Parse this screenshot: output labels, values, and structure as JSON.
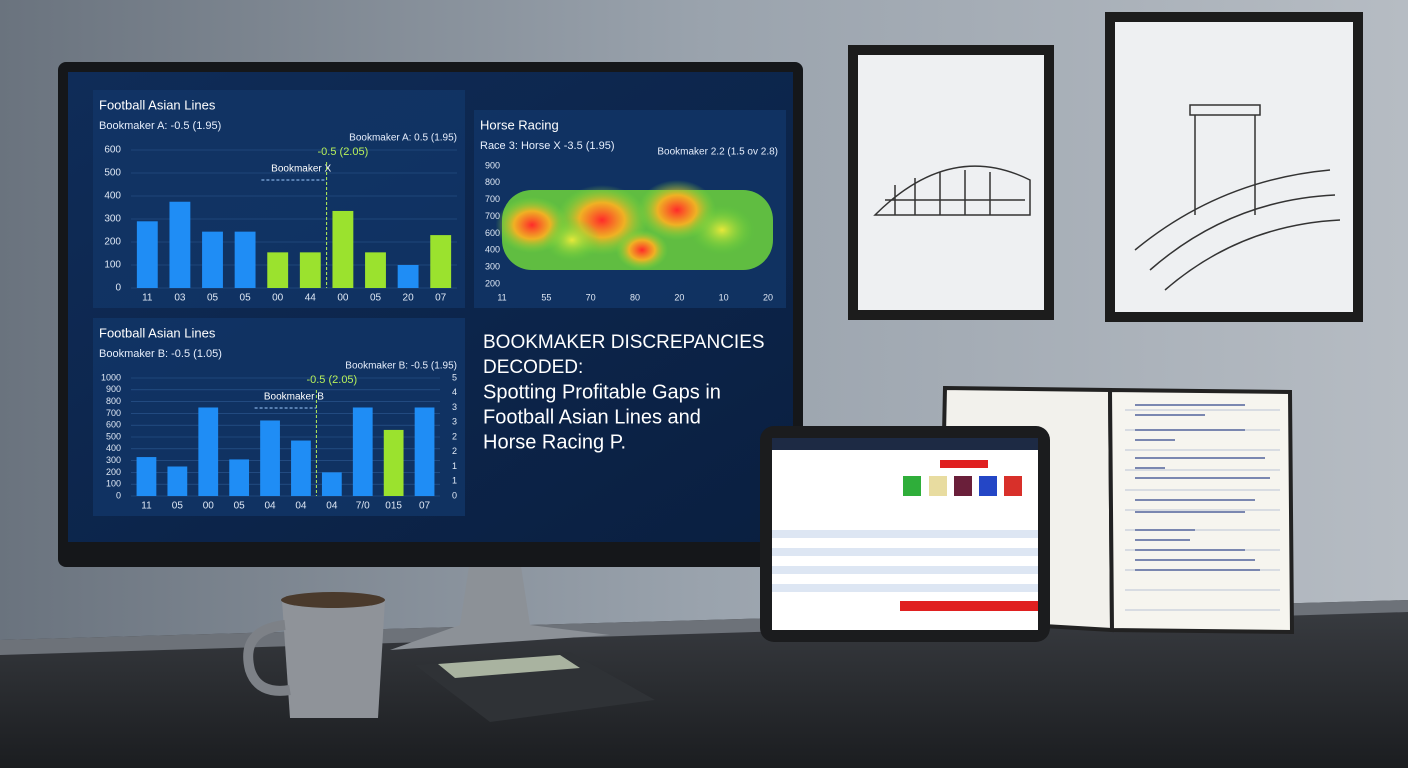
{
  "monitor": {
    "panels": [
      {
        "type": "bar",
        "title": "Football Asian Lines",
        "left_label": "Bookmaker A: -0.5 (1.95)",
        "right_label": "Bookmaker A: 0.5 (1.95)",
        "annotations": [
          "Bookmaker X",
          "-0.5 (2.05)"
        ],
        "categories": [
          "11",
          "03",
          "05",
          "05",
          "00",
          "44",
          "00",
          "05",
          "20",
          "07"
        ],
        "values": [
          290,
          375,
          245,
          245,
          155,
          155,
          335,
          155,
          100,
          230
        ],
        "colors": [
          "#1f8df5",
          "#1f8df5",
          "#1f8df5",
          "#1f8df5",
          "#9be22e",
          "#9be22e",
          "#9be22e",
          "#9be22e",
          "#1f8df5",
          "#9be22e"
        ],
        "ylim": [
          0,
          600
        ],
        "yticks": [
          0,
          100,
          200,
          300,
          400,
          500,
          600
        ]
      },
      {
        "type": "heatmap",
        "title": "Horse Racing",
        "left_label": "Race 3: Horse X -3.5 (1.95)",
        "right_label": "Bookmaker 2.2 (1.5 ov 2.8)",
        "y_labels": [
          "900",
          "800",
          "700",
          "700",
          "600",
          "400",
          "300",
          "200"
        ],
        "x_labels": [
          "11",
          "55",
          "70",
          "80",
          "20",
          "10",
          "20"
        ]
      },
      {
        "type": "bar",
        "title": "Football Asian Lines",
        "left_label": "Bookmaker B: -0.5 (1.05)",
        "right_label": "Bookmaker B: -0.5 (1.95)",
        "annotations": [
          "Bookmaker B",
          "-0.5 (2.05)"
        ],
        "categories": [
          "11",
          "05",
          "00",
          "05",
          "04",
          "04",
          "04",
          "7/0",
          "015",
          "07"
        ],
        "values": [
          330,
          250,
          750,
          310,
          640,
          470,
          200,
          750,
          560,
          750
        ],
        "colors": [
          "#1f8df5",
          "#1f8df5",
          "#1f8df5",
          "#1f8df5",
          "#1f8df5",
          "#1f8df5",
          "#1f8df5",
          "#1f8df5",
          "#9be22e",
          "#1f8df5"
        ],
        "ylim": [
          0,
          1000
        ],
        "yticks": [
          0,
          100,
          200,
          300,
          400,
          500,
          600,
          700,
          800,
          900,
          1000
        ],
        "right_ticks": [
          "5",
          "4",
          "3",
          "3",
          "2",
          "2",
          "1",
          "1",
          "0"
        ]
      }
    ],
    "headline": [
      "BOOKMAKER DISCREPANCIES",
      "DECODED:",
      "Spotting Profitable Gaps in",
      "Football Asian Lines and",
      "Horse Racing P."
    ]
  }
}
